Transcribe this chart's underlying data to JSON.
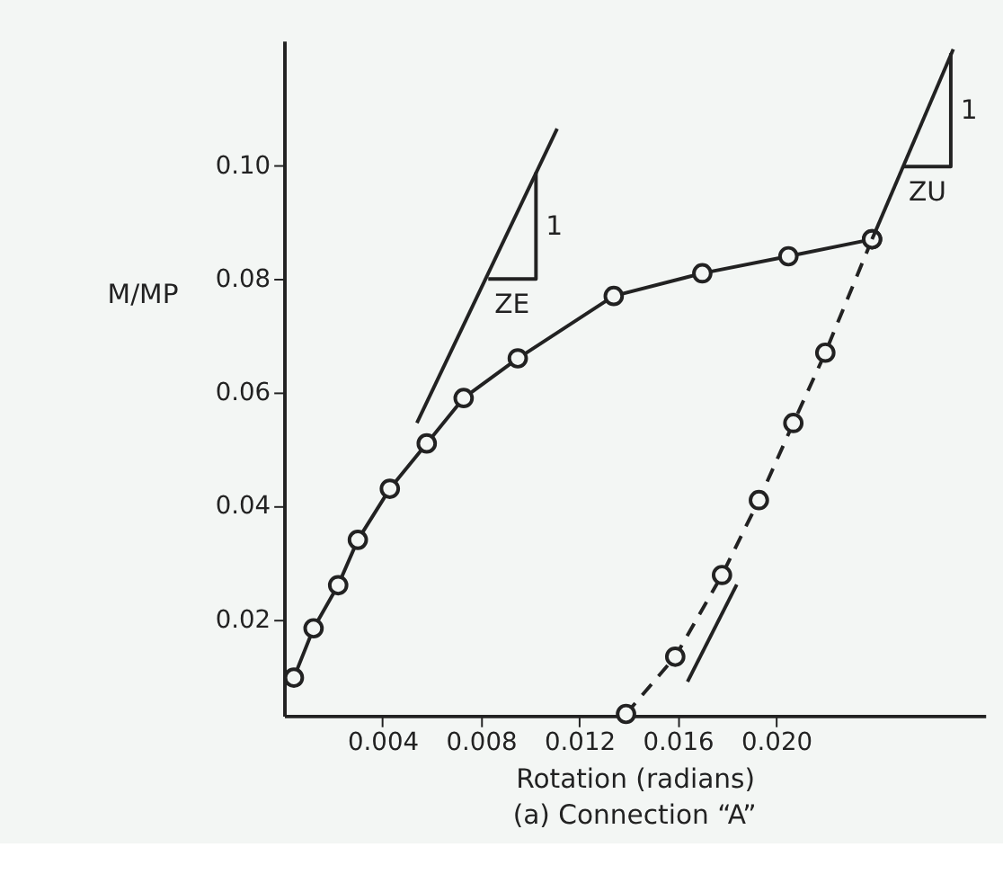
{
  "chart_data": {
    "type": "line",
    "xlabel": "Rotation (radians)",
    "ylabel": "M/MP",
    "annotations": [
      "(a) Connection “A”",
      "1",
      "ZE",
      "1",
      "ZU"
    ],
    "xlim": [
      0,
      0.0285
    ],
    "ylim": [
      0.003,
      0.122
    ],
    "xticks": [
      0.004,
      0.008,
      0.012,
      0.016,
      {
        "value": 0.02,
        "label": "0.020"
      }
    ],
    "yticks": [
      0.02,
      0.04,
      0.06,
      0.08,
      {
        "value": 0.1,
        "label": "0.10"
      }
    ],
    "grid": false,
    "series": [
      {
        "color": "#222222",
        "marker": "circle",
        "line_style": "solid",
        "x": [
          0.0004,
          0.0012,
          0.0022,
          0.003,
          0.0043,
          0.0058,
          0.0073,
          0.0095,
          0.0134,
          0.017,
          0.0205,
          0.0239
        ],
        "values": [
          0.0097,
          0.0184,
          0.026,
          0.034,
          0.043,
          0.051,
          0.059,
          0.066,
          0.077,
          0.081,
          0.084,
          0.087
        ]
      },
      {
        "color": "#222222",
        "marker": "circle",
        "line_style": "dashed",
        "x": [
          0.0139,
          0.0159,
          0.0178,
          0.0193,
          0.0207,
          0.022,
          0.0239
        ],
        "values": [
          0.0033,
          0.0134,
          0.0278,
          0.041,
          0.0546,
          0.067,
          0.087
        ]
      },
      {
        "color": "#222222",
        "marker": "none",
        "line_style": "solid",
        "x": [
          0.0054,
          0.0111
        ],
        "values": [
          0.0546,
          0.1065
        ]
      },
      {
        "color": "#222222",
        "marker": "none",
        "line_style": "solid",
        "x": [
          0.0083,
          0.01024,
          0.01024
        ],
        "values": [
          0.08,
          0.08,
          0.0988
        ]
      },
      {
        "color": "#222222",
        "marker": "none",
        "line_style": "solid",
        "x": [
          0.0239,
          0.0272
        ],
        "values": [
          0.087,
          0.1205
        ]
      },
      {
        "color": "#222222",
        "marker": "none",
        "line_style": "solid",
        "x": [
          0.0252,
          0.0271,
          0.0271
        ],
        "values": [
          0.0998,
          0.0998,
          0.1198
        ]
      },
      {
        "color": "#222222",
        "marker": "none",
        "line_style": "solid",
        "x": [
          0.0164,
          0.0184
        ],
        "values": [
          0.009,
          0.0261
        ]
      }
    ]
  }
}
